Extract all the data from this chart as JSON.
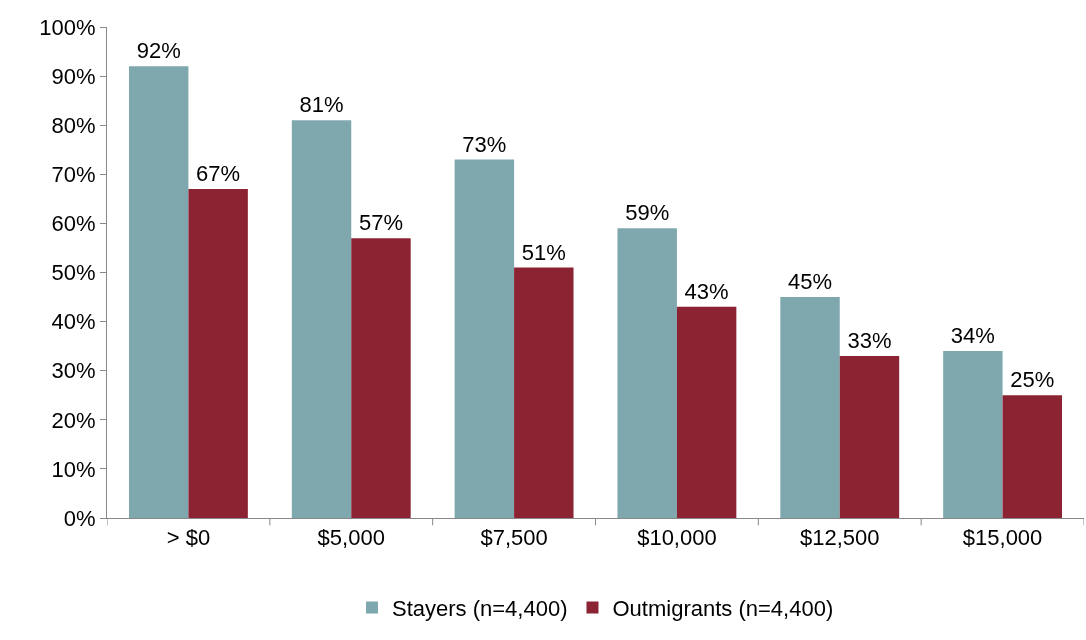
{
  "chart_data": {
    "type": "bar",
    "categories": [
      "> $0",
      "$5,000",
      "$7,500",
      "$10,000",
      "$12,500",
      "$15,000"
    ],
    "series": [
      {
        "name": "Stayers (n=4,400)",
        "color": "#7ea8ae",
        "values": [
          92,
          81,
          73,
          59,
          45,
          34
        ],
        "value_labels": [
          "92%",
          "81%",
          "73%",
          "59%",
          "45%",
          "34%"
        ]
      },
      {
        "name": "Outmigrants (n=4,400)",
        "color": "#8b2332",
        "values": [
          67,
          57,
          51,
          43,
          33,
          25
        ],
        "value_labels": [
          "67%",
          "57%",
          "51%",
          "43%",
          "33%",
          "25%"
        ]
      }
    ],
    "ylim": [
      0,
      100
    ],
    "yticks": [
      {
        "value": 0,
        "label": "0%"
      },
      {
        "value": 10,
        "label": "10%"
      },
      {
        "value": 20,
        "label": "20%"
      },
      {
        "value": 30,
        "label": "30%"
      },
      {
        "value": 40,
        "label": "40%"
      },
      {
        "value": 50,
        "label": "50%"
      },
      {
        "value": 60,
        "label": "60%"
      },
      {
        "value": 70,
        "label": "70%"
      },
      {
        "value": 80,
        "label": "80%"
      },
      {
        "value": 90,
        "label": "90%"
      },
      {
        "value": 100,
        "label": "100%"
      }
    ],
    "legend": "bottom"
  }
}
